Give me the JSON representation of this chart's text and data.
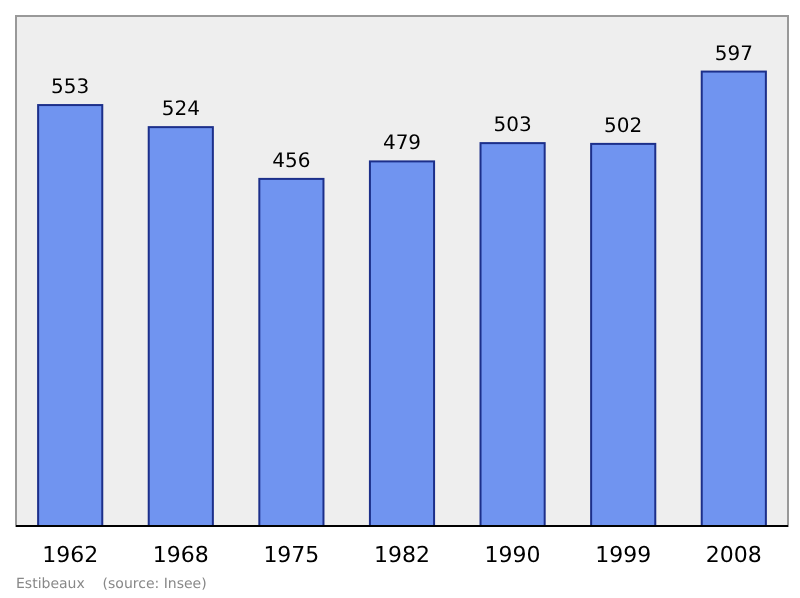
{
  "chart_data": {
    "type": "bar",
    "categories": [
      "1962",
      "1968",
      "1975",
      "1982",
      "1990",
      "1999",
      "2008"
    ],
    "values": [
      553,
      524,
      456,
      479,
      503,
      502,
      597
    ],
    "color": "#7094f0",
    "ylim": [
      0,
      670
    ],
    "data_labels": true,
    "annotations": [
      "Estibeaux    (source: Insee)"
    ]
  }
}
